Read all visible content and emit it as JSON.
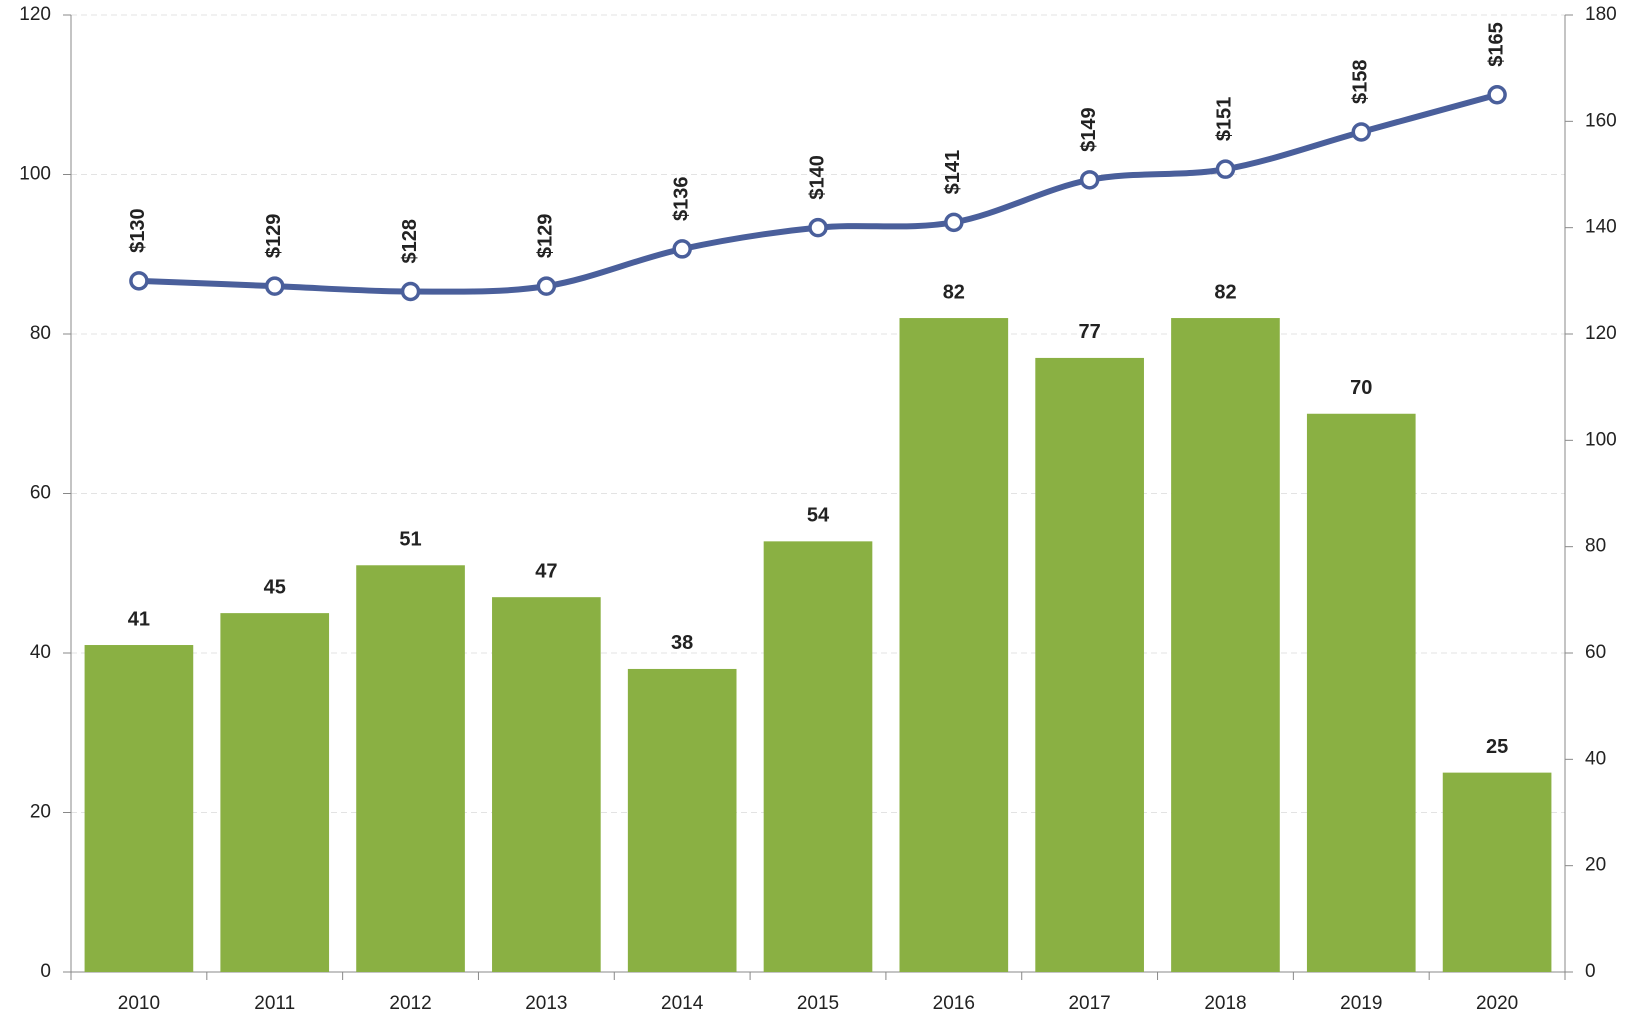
{
  "chart_data": {
    "type": "bar-line",
    "categories": [
      "2010",
      "2011",
      "2012",
      "2013",
      "2014",
      "2015",
      "2016",
      "2017",
      "2018",
      "2019",
      "2020"
    ],
    "series": [
      {
        "type": "bar",
        "color": "#8ab043",
        "values": [
          41,
          45,
          51,
          47,
          38,
          54,
          82,
          77,
          82,
          70,
          25
        ]
      },
      {
        "type": "line",
        "axis": "y2",
        "color": "#4a5f9b",
        "values": [
          130,
          129,
          128,
          129,
          136,
          140,
          141,
          149,
          151,
          158,
          165
        ],
        "value_labels": [
          "$130",
          "$129",
          "$128",
          "$129",
          "$136",
          "$140",
          "$141",
          "$149",
          "$151",
          "$158",
          "$165"
        ]
      }
    ],
    "ylim": [
      0,
      120
    ],
    "yticks": [
      0,
      20,
      40,
      60,
      80,
      100,
      120
    ],
    "y2lim": [
      0,
      180
    ],
    "y2ticks": [
      0,
      20,
      40,
      60,
      80,
      100,
      120,
      140,
      160,
      180
    ],
    "grid": true
  }
}
